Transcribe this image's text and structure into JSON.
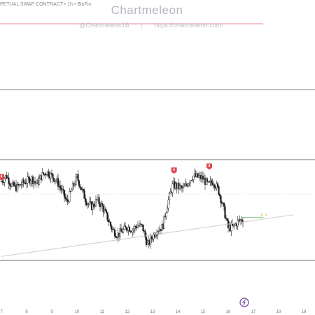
{
  "header": {
    "symbol_line": "PETUAL SWAP CONTRACT • 1h • BloFin",
    "watermark_title": "Chartmeleon",
    "handle_left": "@Chartmeleon1B",
    "separator": "|",
    "handle_right": "https://chartmeleon.com/"
  },
  "colors": {
    "candle": "#1a1a1a",
    "marker_red": "#e3474f",
    "trendline": "#c9c9c9",
    "range_line": "#5a5a5a",
    "accent_line": "#e06470",
    "target_green": "#7cc57f",
    "target_label": "#d8c25c",
    "logo_purple": "#7a4fa3"
  },
  "icons": {
    "marker": "red-arrow-marker",
    "logo": "tradingview-logo-icon"
  },
  "target_label": "8 ≯",
  "chart_data": {
    "type": "candlestick",
    "title": "",
    "xlabel": "",
    "ylabel": "",
    "x_ticks": [
      "7",
      "8",
      "9",
      "10",
      "11",
      "12",
      "13",
      "14",
      "15",
      "16",
      "17",
      "18",
      "19"
    ],
    "x_range": [
      7.0,
      19.0
    ],
    "y_range": [
      0,
      100
    ],
    "grid": false,
    "legend": "none",
    "close_path": [
      [
        7.0,
        60
      ],
      [
        7.2,
        64
      ],
      [
        7.4,
        57
      ],
      [
        7.6,
        55
      ],
      [
        7.8,
        58
      ],
      [
        8.0,
        60
      ],
      [
        8.2,
        62
      ],
      [
        8.4,
        58
      ],
      [
        8.6,
        64
      ],
      [
        8.8,
        67
      ],
      [
        9.0,
        64
      ],
      [
        9.2,
        60
      ],
      [
        9.4,
        53
      ],
      [
        9.6,
        44
      ],
      [
        9.8,
        54
      ],
      [
        10.0,
        63
      ],
      [
        10.2,
        53
      ],
      [
        10.4,
        44
      ],
      [
        10.6,
        41
      ],
      [
        10.8,
        46
      ],
      [
        11.0,
        41
      ],
      [
        11.2,
        33
      ],
      [
        11.4,
        24
      ],
      [
        11.6,
        20
      ],
      [
        11.8,
        23
      ],
      [
        12.0,
        26
      ],
      [
        12.2,
        24
      ],
      [
        12.4,
        27
      ],
      [
        12.6,
        26
      ],
      [
        12.8,
        12
      ],
      [
        13.0,
        19
      ],
      [
        13.2,
        24
      ],
      [
        13.4,
        26
      ],
      [
        13.6,
        44
      ],
      [
        13.8,
        57
      ],
      [
        14.0,
        56
      ],
      [
        14.2,
        54
      ],
      [
        14.4,
        59
      ],
      [
        14.6,
        64
      ],
      [
        14.8,
        63
      ],
      [
        15.0,
        62
      ],
      [
        15.2,
        57
      ],
      [
        15.4,
        60
      ],
      [
        15.6,
        54
      ],
      [
        15.8,
        41
      ],
      [
        16.0,
        25
      ],
      [
        16.2,
        26
      ],
      [
        16.4,
        30
      ],
      [
        16.6,
        32
      ]
    ],
    "resistance_level": 76,
    "support_level": 1,
    "trendline": [
      [
        7.0,
        4
      ],
      [
        18.6,
        35
      ]
    ],
    "target_level": 33,
    "target_x_range": [
      16.6,
      17.4
    ],
    "sell_markers": [
      [
        13.85,
        65
      ],
      [
        15.25,
        68
      ],
      [
        7.0,
        60
      ]
    ]
  }
}
